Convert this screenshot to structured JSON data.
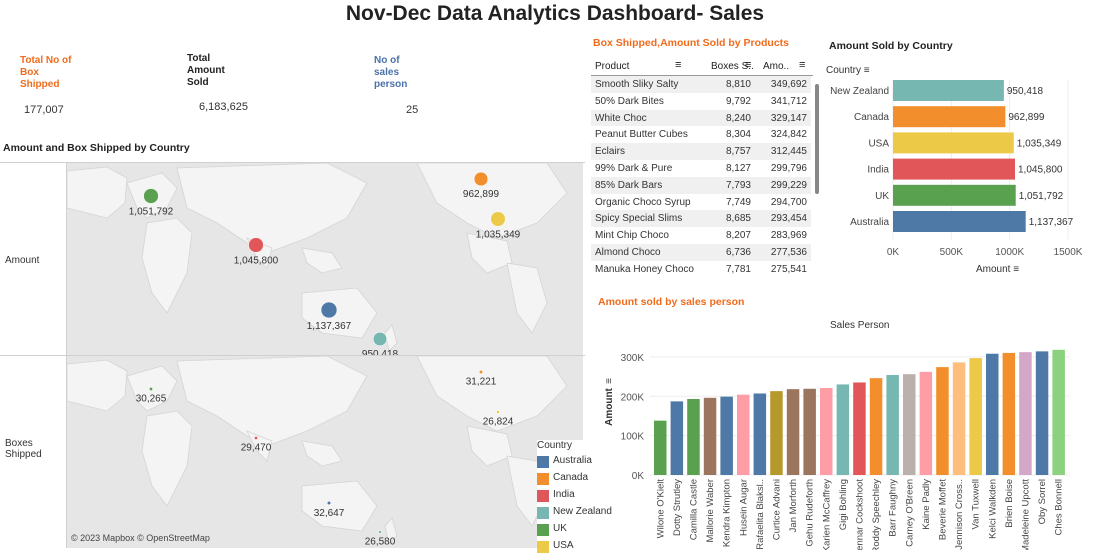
{
  "title": "Nov-Dec Data Analytics Dashboard- Sales",
  "kpis": {
    "boxes_label": "Total No of Box Shipped",
    "boxes_value": "177,007",
    "amount_label": "Total Amount Sold",
    "amount_value": "6,183,625",
    "sales_label": "No of sales person",
    "sales_value": "25"
  },
  "map": {
    "title": "Amount and Box Shipped by Country",
    "row1_label": "Amount",
    "row2_label": "Boxes Shipped",
    "attribution": "© 2023 Mapbox © OpenStreetMap",
    "legend_title": "Country",
    "legend": [
      {
        "name": "Australia",
        "color": "#4e79a7"
      },
      {
        "name": "Canada",
        "color": "#f28e2b"
      },
      {
        "name": "India",
        "color": "#e15759"
      },
      {
        "name": "New Zealand",
        "color": "#76b7b2"
      },
      {
        "name": "UK",
        "color": "#59a14f"
      },
      {
        "name": "USA",
        "color": "#edc948"
      }
    ]
  },
  "products": {
    "title": "Box Shipped,Amount Sold by Products",
    "col_product": "Product",
    "col_boxes": "Boxes S..",
    "col_amount": "Amo..",
    "rows": [
      {
        "product": "Smooth Sliky Salty",
        "boxes": "8,810",
        "amount": "349,692"
      },
      {
        "product": "50% Dark Bites",
        "boxes": "9,792",
        "amount": "341,712"
      },
      {
        "product": "White Choc",
        "boxes": "8,240",
        "amount": "329,147"
      },
      {
        "product": "Peanut Butter Cubes",
        "boxes": "8,304",
        "amount": "324,842"
      },
      {
        "product": "Eclairs",
        "boxes": "8,757",
        "amount": "312,445"
      },
      {
        "product": "99% Dark & Pure",
        "boxes": "8,127",
        "amount": "299,796"
      },
      {
        "product": "85% Dark Bars",
        "boxes": "7,793",
        "amount": "299,229"
      },
      {
        "product": "Organic Choco Syrup",
        "boxes": "7,749",
        "amount": "294,700"
      },
      {
        "product": "Spicy Special Slims",
        "boxes": "8,685",
        "amount": "293,454"
      },
      {
        "product": "Mint Chip Choco",
        "boxes": "8,207",
        "amount": "283,969"
      },
      {
        "product": "Almond Choco",
        "boxes": "6,736",
        "amount": "277,536"
      },
      {
        "product": "Manuka Honey Choco",
        "boxes": "7,781",
        "amount": "275,541"
      }
    ]
  },
  "chart_data": [
    {
      "type": "scatter",
      "title": "Amount and Box Shipped by Country",
      "series": [
        {
          "name": "Amount",
          "points": [
            {
              "country": "UK",
              "value": 1051792,
              "label": "1,051,792"
            },
            {
              "country": "Canada",
              "value": 962899,
              "label": "962,899"
            },
            {
              "country": "USA",
              "value": 1035349,
              "label": "1,035,349"
            },
            {
              "country": "India",
              "value": 1045800,
              "label": "1,045,800"
            },
            {
              "country": "Australia",
              "value": 1137367,
              "label": "1,137,367"
            },
            {
              "country": "New Zealand",
              "value": 950418,
              "label": "950,418"
            }
          ]
        },
        {
          "name": "Boxes Shipped",
          "points": [
            {
              "country": "UK",
              "value": 30265,
              "label": "30,265"
            },
            {
              "country": "Canada",
              "value": 31221,
              "label": "31,221"
            },
            {
              "country": "USA",
              "value": 26824,
              "label": "26,824"
            },
            {
              "country": "India",
              "value": 29470,
              "label": "29,470"
            },
            {
              "country": "Australia",
              "value": 32647,
              "label": "32,647"
            },
            {
              "country": "New Zealand",
              "value": 26580,
              "label": "26,580"
            }
          ]
        }
      ]
    },
    {
      "type": "bar",
      "orientation": "horizontal",
      "title": "Amount Sold by Country",
      "ylabel": "Country",
      "xlabel": "Amount",
      "categories": [
        "New Zealand",
        "Canada",
        "USA",
        "India",
        "UK",
        "Australia"
      ],
      "values": [
        950418,
        962899,
        1035349,
        1045800,
        1051792,
        1137367
      ],
      "value_labels": [
        "950,418",
        "962,899",
        "1,035,349",
        "1,045,800",
        "1,051,792",
        "1,137,367"
      ],
      "colors": [
        "#76b7b2",
        "#f28e2b",
        "#edc948",
        "#e15759",
        "#59a14f",
        "#4e79a7"
      ],
      "xlim": [
        0,
        1500000
      ],
      "xticks": [
        "0K",
        "500K",
        "1000K",
        "1500K"
      ]
    },
    {
      "type": "bar",
      "title": "Amount sold by sales person",
      "subtitle": "Sales Person",
      "ylabel": "Amount",
      "ylim": [
        0,
        320000
      ],
      "yticks": [
        "0K",
        "100K",
        "200K",
        "300K"
      ],
      "categories": [
        "Wilone O'Kielt",
        "Dotty Strutley",
        "Camilla Castle",
        "Mallorie Waber",
        "Kendra Kimpton",
        "Husein Augar",
        "Rafaelita Blaksl..",
        "Curtice Advani",
        "Jan Morforth",
        "Gehu Rudeforth",
        "Karien McCaffrey",
        "Gigi Bohling",
        "Dennar Cockshoot",
        "Roddy Speechley",
        "Barr Faughny",
        "Carney O'Breen",
        "Kaine Padly",
        "Beverie Moffet",
        "Jennison Cross..",
        "Van Tuxwell",
        "Kelci Walkden",
        "Brien Boise",
        "Madeleine Upcott",
        "Oby Sorrel",
        "Ches Bonnell"
      ],
      "values": [
        138000,
        187000,
        193000,
        196000,
        199000,
        204000,
        207000,
        213000,
        218000,
        219000,
        221000,
        230000,
        235000,
        246000,
        254000,
        256000,
        262000,
        274000,
        286000,
        297000,
        308000,
        310000,
        312000,
        314000,
        318000
      ],
      "colors": [
        "#59a14f",
        "#4e79a7",
        "#59a14f",
        "#9c755f",
        "#4e79a7",
        "#ff9da7",
        "#4e79a7",
        "#b6992d",
        "#9c755f",
        "#9c755f",
        "#ff9da7",
        "#76b7b2",
        "#e15759",
        "#f28e2b",
        "#76b7b2",
        "#bab0ac",
        "#ff9da7",
        "#f28e2b",
        "#ffbe7d",
        "#edc948",
        "#4e79a7",
        "#f28e2b",
        "#d4a6c8",
        "#4e79a7",
        "#8cd17d"
      ]
    }
  ]
}
